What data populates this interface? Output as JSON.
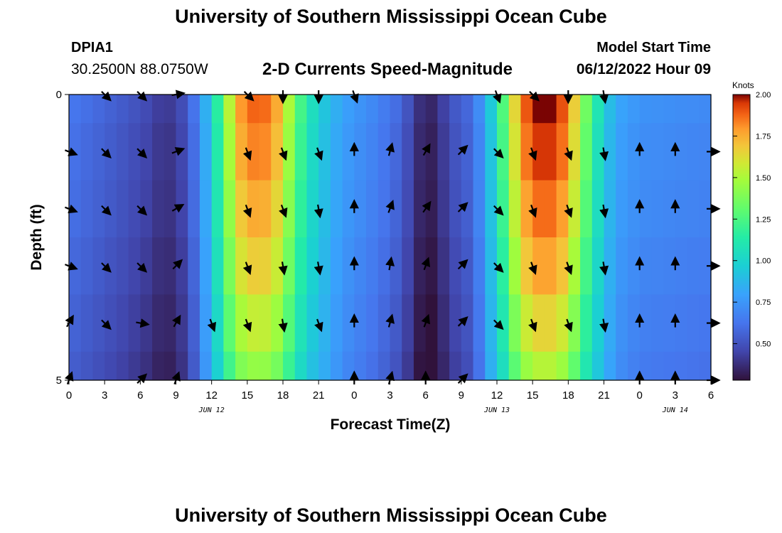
{
  "header": {
    "title": "University of Southern Mississippi Ocean Cube",
    "station_id": "DPIA1",
    "station_coords": "30.2500N  88.0750W",
    "subtitle": "2-D Currents Speed-Magnitude",
    "model_start_label": "Model Start Time",
    "model_start_value": "06/12/2022 Hour 09"
  },
  "footer": {
    "title": "University of Southern Mississippi Ocean Cube"
  },
  "chart_data": {
    "type": "heatmap",
    "title": "2-D Currents Speed-Magnitude",
    "xlabel": "Forecast Time(Z)",
    "ylabel": "Depth (ft)",
    "x_ticks": [
      "0",
      "3",
      "6",
      "9",
      "12",
      "15",
      "18",
      "21",
      "0",
      "3",
      "6",
      "9",
      "12",
      "15",
      "18",
      "21",
      "0",
      "3",
      "6"
    ],
    "x_tick_hours": [
      0,
      3,
      6,
      9,
      12,
      15,
      18,
      21,
      24,
      27,
      30,
      33,
      36,
      39,
      42,
      45,
      48,
      51,
      54
    ],
    "x_range_hours": [
      0,
      54
    ],
    "y_ticks": [
      "0",
      "5"
    ],
    "y_tick_values": [
      0,
      5
    ],
    "y_range": [
      0,
      5
    ],
    "date_labels": [
      {
        "label": "JUN 12",
        "hour": 12
      },
      {
        "label": "JUN 13",
        "hour": 36
      },
      {
        "label": "JUN 14",
        "hour": 51
      }
    ],
    "colorbar": {
      "label": "Knots",
      "ticks": [
        "2.00",
        "1.75",
        "1.50",
        "1.25",
        "1.00",
        "0.75",
        "0.50"
      ],
      "tick_values": [
        2.0,
        1.75,
        1.5,
        1.25,
        1.0,
        0.75,
        0.5
      ],
      "range": [
        0.28,
        2.0
      ]
    },
    "row_depth_edges": [
      0,
      0.5,
      1.5,
      2.5,
      3.5,
      4.5,
      5
    ],
    "speed_base_by_hour": [
      [
        0,
        0.62
      ],
      [
        3,
        0.55
      ],
      [
        5,
        0.5
      ],
      [
        7,
        0.44
      ],
      [
        8,
        0.38
      ],
      [
        9,
        0.42
      ],
      [
        10,
        0.5
      ],
      [
        11,
        0.7
      ],
      [
        12,
        0.95
      ],
      [
        13,
        1.3
      ],
      [
        14,
        1.68
      ],
      [
        15,
        1.82
      ],
      [
        16,
        1.84
      ],
      [
        17,
        1.8
      ],
      [
        18,
        1.62
      ],
      [
        19,
        1.3
      ],
      [
        20,
        1.1
      ],
      [
        21,
        0.95
      ],
      [
        23,
        0.78
      ],
      [
        26,
        0.66
      ],
      [
        28,
        0.55
      ],
      [
        29,
        0.42
      ],
      [
        30,
        0.3
      ],
      [
        31,
        0.36
      ],
      [
        32,
        0.48
      ],
      [
        34,
        0.58
      ],
      [
        35,
        0.8
      ],
      [
        36,
        1.05
      ],
      [
        37,
        1.42
      ],
      [
        38,
        1.78
      ],
      [
        39,
        1.92
      ],
      [
        40,
        1.98
      ],
      [
        41,
        1.92
      ],
      [
        42,
        1.8
      ],
      [
        43,
        1.45
      ],
      [
        44,
        1.18
      ],
      [
        45,
        0.95
      ],
      [
        46,
        0.8
      ],
      [
        48,
        0.72
      ],
      [
        51,
        0.7
      ],
      [
        54,
        0.68
      ]
    ],
    "row_peak_scale": [
      1.03,
      1.0,
      0.93,
      0.86,
      0.76,
      0.66
    ],
    "row_offset": [
      0.02,
      0.0,
      -0.01,
      -0.03,
      -0.05,
      -0.07
    ],
    "vector_columns_hours": [
      0,
      3,
      6,
      9,
      12,
      15,
      18,
      21,
      24,
      27,
      30,
      33,
      36,
      39,
      42,
      45,
      48,
      51,
      54
    ],
    "vector_row_depths": [
      0,
      1,
      2,
      3,
      4,
      5
    ],
    "vector_angles_deg": [
      [
        null,
        135,
        135,
        80,
        null,
        135,
        180,
        180,
        160,
        null,
        null,
        null,
        160,
        135,
        180,
        170,
        null,
        null,
        null
      ],
      [
        110,
        135,
        135,
        70,
        null,
        160,
        160,
        160,
        0,
        15,
        30,
        45,
        135,
        160,
        160,
        170,
        0,
        0,
        90
      ],
      [
        110,
        135,
        135,
        60,
        null,
        160,
        160,
        170,
        0,
        20,
        35,
        45,
        135,
        160,
        160,
        170,
        0,
        0,
        90
      ],
      [
        110,
        135,
        135,
        45,
        null,
        160,
        170,
        170,
        0,
        10,
        20,
        45,
        135,
        160,
        160,
        170,
        0,
        0,
        90
      ],
      [
        30,
        135,
        100,
        30,
        160,
        160,
        170,
        160,
        0,
        15,
        20,
        45,
        135,
        160,
        160,
        170,
        0,
        0,
        90
      ],
      [
        20,
        null,
        45,
        20,
        null,
        null,
        null,
        null,
        0,
        15,
        0,
        45,
        null,
        null,
        null,
        null,
        0,
        0,
        90
      ]
    ]
  }
}
